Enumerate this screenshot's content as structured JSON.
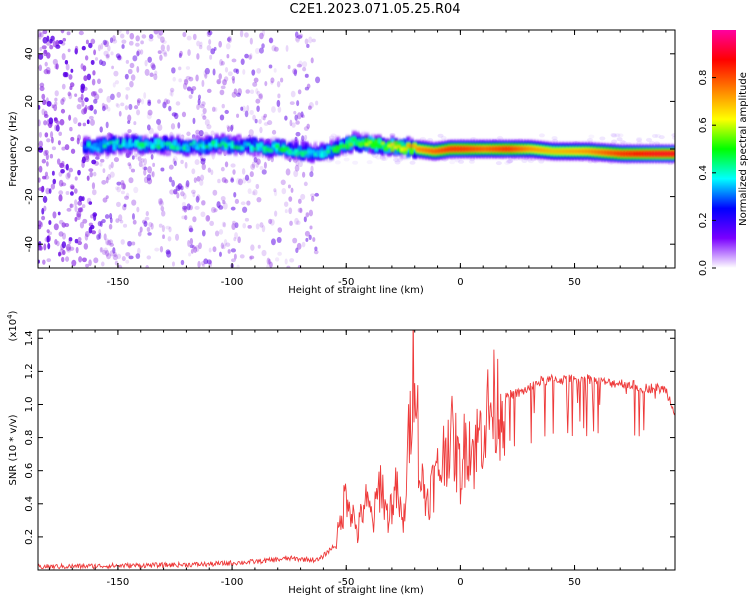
{
  "title": "C2E1.2023.071.05.25.R04",
  "colors": {
    "snr_line": "#ee3a3a",
    "axis": "#000000",
    "background": "#ffffff"
  },
  "chart_data": [
    {
      "type": "heatmap",
      "xlabel": "Height of straight line (km)",
      "ylabel": "Frequency (Hz)",
      "xlim": [
        -185,
        94
      ],
      "ylim": [
        -50,
        50
      ],
      "x_ticks": [
        -150,
        -100,
        -50,
        0,
        50
      ],
      "x_tick_labels": [
        "-150",
        "-100",
        "-50",
        "0",
        "50"
      ],
      "y_ticks": [
        -40,
        -20,
        0,
        20,
        40
      ],
      "y_tick_labels": [
        "-40",
        "-20",
        "0",
        "20",
        "40"
      ],
      "colorbar": {
        "label": "Normalized spectral amplitude",
        "range": [
          0,
          1
        ],
        "ticks": [
          0.0,
          0.2,
          0.4,
          0.6,
          0.8
        ],
        "tick_labels": [
          "0.0",
          "0.2",
          "0.4",
          "0.6",
          "0.8"
        ],
        "colormap": [
          "#ffffff",
          "#7a00ff",
          "#0000ff",
          "#00ffff",
          "#00ff00",
          "#ffff00",
          "#ff8000",
          "#ff0000",
          "#ff00a0"
        ]
      },
      "ridge": {
        "x": [
          -165,
          -150,
          -135,
          -120,
          -105,
          -90,
          -80,
          -70,
          -62,
          -55,
          -48,
          -40,
          -30,
          -20,
          -12,
          -5,
          0,
          10,
          20,
          30,
          40,
          55,
          70,
          85,
          94
        ],
        "center_freq": [
          1,
          2,
          2,
          1,
          2,
          1,
          0,
          -1,
          -2,
          0,
          3,
          2,
          1,
          0,
          -1,
          0,
          0,
          0,
          0,
          0,
          -1,
          -1,
          -2,
          -2,
          -2
        ],
        "amplitude": [
          0.35,
          0.4,
          0.4,
          0.38,
          0.42,
          0.4,
          0.45,
          0.42,
          0.4,
          0.45,
          0.5,
          0.55,
          0.6,
          0.75,
          0.8,
          0.85,
          0.85,
          0.8,
          0.85,
          0.75,
          0.7,
          0.75,
          0.85,
          0.9,
          0.9
        ]
      },
      "noise_region_x": [
        -185,
        -62
      ]
    },
    {
      "type": "line",
      "xlabel": "Height of straight line (km)",
      "ylabel": "SNR (10 * v/v)",
      "ylabel_scale": "(x10",
      "ylabel_scale_exp": "4",
      "ylabel_scale_close": ")",
      "xlim": [
        -185,
        94
      ],
      "ylim": [
        0,
        14500
      ],
      "x_ticks": [
        -150,
        -100,
        -50,
        0,
        50
      ],
      "x_tick_labels": [
        "-150",
        "-100",
        "-50",
        "0",
        "50"
      ],
      "y_ticks": [
        2000,
        4000,
        6000,
        8000,
        10000,
        12000,
        14000
      ],
      "y_tick_labels": [
        "0.2",
        "0.4",
        "0.6",
        "0.8",
        "1.0",
        "1.2",
        "1.4"
      ],
      "series": [
        {
          "color": "#ee3a3a",
          "x": [
            -185,
            -170,
            -150,
            -130,
            -110,
            -90,
            -75,
            -62,
            -55,
            -52,
            -50,
            -48,
            -45,
            -42,
            -38,
            -35,
            -32,
            -28,
            -25,
            -22,
            -20,
            -18,
            -15,
            -12,
            -8,
            -5,
            -2,
            0,
            3,
            6,
            10,
            14,
            18,
            22,
            26,
            30,
            35,
            40,
            45,
            50,
            55,
            60,
            65,
            70,
            75,
            80,
            85,
            90,
            94
          ],
          "values": [
            200,
            220,
            260,
            300,
            350,
            500,
            700,
            600,
            1500,
            3000,
            5000,
            3800,
            2200,
            4200,
            3000,
            5500,
            3200,
            4800,
            2500,
            9000,
            14500,
            6000,
            4200,
            5200,
            6500,
            8300,
            7200,
            5800,
            8300,
            7100,
            8900,
            9900,
            10200,
            10600,
            10700,
            11000,
            11400,
            11500,
            11500,
            11500,
            11600,
            11400,
            11300,
            11300,
            11200,
            11000,
            11000,
            10900,
            9500
          ]
        }
      ]
    }
  ]
}
